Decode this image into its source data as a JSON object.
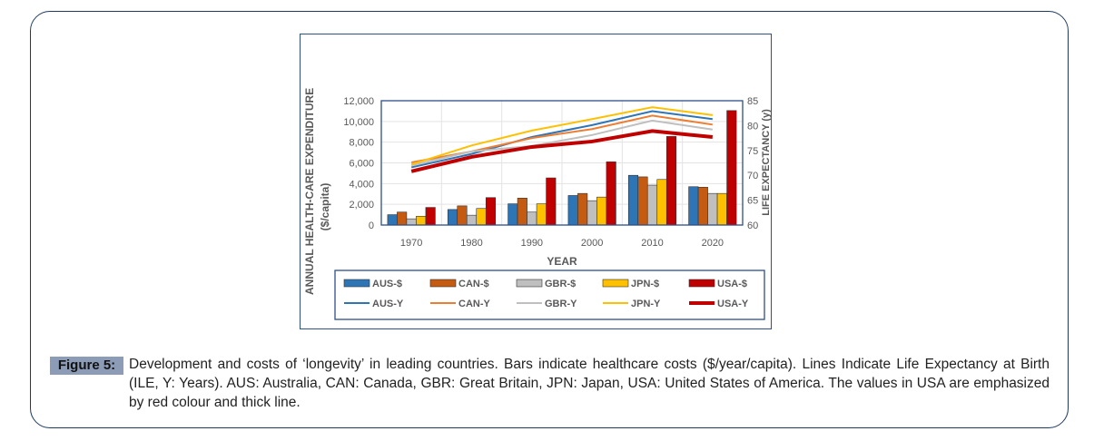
{
  "figure": {
    "label": "Figure 5:",
    "caption": "Development and costs of ‘longevity’ in leading countries. Bars indicate healthcare costs ($/year/capita). Lines Indicate Life Expectancy at Birth (ILE, Y: Years). AUS: Australia, CAN: Canada, GBR: Great Britain, JPN: Japan, USA: United States of America. The values in USA are emphasized by red colour and thick line."
  },
  "chart_data": {
    "type": "bar+line",
    "categories": [
      "1970",
      "1980",
      "1990",
      "2000",
      "2010",
      "2020"
    ],
    "xlabel": "YEAR",
    "ylabel": "ANNUAL HEALTH-CARE EXPENDITURE ($/capita)",
    "ylabel_line1": "ANNUAL HEALTH-CARE EXPENDITURE",
    "ylabel_line2": "($/capita)",
    "y2label": "LIFE EXPECTANCY (y)",
    "ylim": [
      0,
      12000
    ],
    "y2lim": [
      60,
      85
    ],
    "yticks": [
      "0",
      "2,000",
      "4,000",
      "6,000",
      "8,000",
      "10,000",
      "12,000"
    ],
    "y2ticks": [
      "60",
      "65",
      "70",
      "75",
      "80",
      "85"
    ],
    "grid": true,
    "legend_position": "bottom",
    "bar_series": [
      {
        "name": "AUS-$",
        "color": "#2e75b6",
        "values": [
          1000,
          1500,
          2050,
          2850,
          4800,
          3700
        ]
      },
      {
        "name": "CAN-$",
        "color": "#c55a11",
        "values": [
          1250,
          1850,
          2600,
          3050,
          4650,
          3650
        ]
      },
      {
        "name": "GBR-$",
        "color": "#bfbfbf",
        "values": [
          600,
          950,
          1250,
          2350,
          3850,
          3050
        ]
      },
      {
        "name": "JPN-$",
        "color": "#ffc000",
        "values": [
          850,
          1600,
          2050,
          2700,
          4400,
          3050
        ]
      },
      {
        "name": "USA-$",
        "color": "#c00000",
        "values": [
          1700,
          2650,
          4550,
          6100,
          8550,
          11050
        ]
      }
    ],
    "line_series": [
      {
        "name": "AUS-Y",
        "color": "#2e75b6",
        "values": [
          71.6,
          74.3,
          77.7,
          80.1,
          82.9,
          81.3
        ]
      },
      {
        "name": "CAN-Y",
        "color": "#ed7d31",
        "values": [
          72.6,
          74.8,
          77.5,
          79.3,
          82.0,
          80.2
        ]
      },
      {
        "name": "GBR-Y",
        "color": "#bfbfbf",
        "values": [
          72.0,
          74.8,
          75.9,
          78.1,
          81.0,
          79.2
        ]
      },
      {
        "name": "JPN-Y",
        "color": "#ffc000",
        "values": [
          72.2,
          76.0,
          79.0,
          81.3,
          83.7,
          82.1
        ]
      },
      {
        "name": "USA-Y",
        "color": "#c00000",
        "thick": true,
        "values": [
          70.8,
          73.7,
          75.7,
          76.8,
          78.9,
          77.7
        ]
      }
    ]
  }
}
